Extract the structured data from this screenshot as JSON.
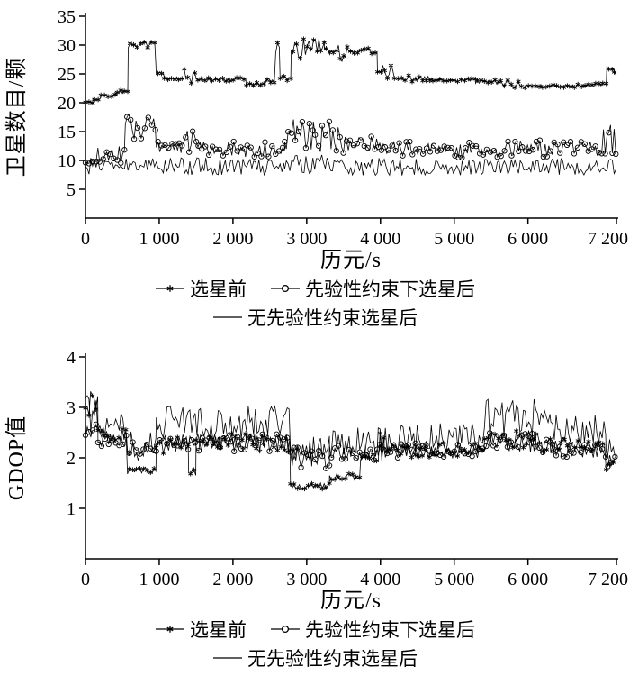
{
  "figure": {
    "background": "#ffffff",
    "series_color": "#000000"
  },
  "chart_data": [
    {
      "type": "line",
      "title": "",
      "xlabel": "历元/s",
      "ylabel": "卫星数目/颗",
      "xlim": [
        0,
        7200
      ],
      "ylim": [
        0,
        35
      ],
      "xticks": [
        0,
        1000,
        2000,
        3000,
        4000,
        5000,
        6000,
        7200
      ],
      "xtick_labels": [
        "0",
        "1 000",
        "2 000",
        "3 000",
        "4 000",
        "5 000",
        "6 000",
        "7 200"
      ],
      "yticks": [
        5,
        10,
        15,
        20,
        25,
        30,
        35
      ],
      "grid": false,
      "legend_position": "below",
      "sample_step": 24,
      "seed": 11,
      "legend": [
        {
          "label": "选星前",
          "marker": "star"
        },
        {
          "label": "先验性约束下选星后",
          "marker": "circle"
        },
        {
          "label": "无先验性约束选星后",
          "marker": "line"
        }
      ],
      "series": [
        {
          "name": "选星前",
          "marker": "star",
          "segments": [
            [
              0,
              100,
              20,
              0.15
            ],
            [
              100,
              210,
              20.7,
              0.2
            ],
            [
              210,
              430,
              21.3,
              0.25
            ],
            [
              430,
              580,
              21.9,
              0.3
            ],
            [
              580,
              960,
              30,
              0.7
            ],
            [
              960,
              1070,
              25.1,
              0.3
            ],
            [
              1070,
              1340,
              24.3,
              0.3
            ],
            [
              1340,
              1500,
              24.6,
              1.3
            ],
            [
              1500,
              2180,
              24,
              0.4
            ],
            [
              2180,
              2440,
              23.2,
              0.3
            ],
            [
              2440,
              2580,
              23.9,
              0.5
            ],
            [
              2580,
              2640,
              28,
              3
            ],
            [
              2640,
              2790,
              24.2,
              0.6
            ],
            [
              2790,
              3070,
              29.3,
              1.8
            ],
            [
              3070,
              3240,
              30,
              1.2
            ],
            [
              3240,
              3430,
              29.1,
              0.6
            ],
            [
              3430,
              3570,
              28.6,
              1.6
            ],
            [
              3570,
              3960,
              29,
              0.5
            ],
            [
              3960,
              4070,
              26.2,
              0.9
            ],
            [
              4070,
              4190,
              25.2,
              1.5
            ],
            [
              4190,
              4430,
              24.5,
              0.7
            ],
            [
              4430,
              4710,
              24.1,
              0.6
            ],
            [
              4710,
              5290,
              24,
              0.35
            ],
            [
              5290,
              5630,
              23.6,
              0.4
            ],
            [
              5630,
              5910,
              23.3,
              0.8
            ],
            [
              5910,
              6870,
              22.9,
              0.3
            ],
            [
              6870,
              7070,
              23.1,
              0.3
            ],
            [
              7070,
              7170,
              26,
              0.4
            ],
            [
              7170,
              7200,
              25.1,
              0.3
            ]
          ]
        },
        {
          "name": "先验性约束下选星后",
          "marker": "circle",
          "segments": [
            [
              0,
              540,
              11,
              1.6
            ],
            [
              540,
              960,
              16,
              2.4
            ],
            [
              960,
              1310,
              12.3,
              1.1
            ],
            [
              1310,
              1530,
              13.2,
              2.3
            ],
            [
              1530,
              2170,
              12,
              1.3
            ],
            [
              2170,
              2700,
              12,
              1.4
            ],
            [
              2700,
              3090,
              14.5,
              3
            ],
            [
              3090,
              3540,
              14,
              3
            ],
            [
              3540,
              3990,
              13,
              1.6
            ],
            [
              3990,
              4410,
              12,
              1.3
            ],
            [
              4410,
              5610,
              11.8,
              1.3
            ],
            [
              5610,
              6410,
              12,
              1.5
            ],
            [
              6410,
              7000,
              12,
              1.3
            ],
            [
              7000,
              7200,
              13.6,
              2.6
            ]
          ]
        },
        {
          "name": "无先验性约束选星后",
          "marker": "line",
          "segments": [
            [
              0,
              600,
              9,
              1.4
            ],
            [
              600,
              960,
              9.4,
              1.3
            ],
            [
              960,
              2700,
              9,
              1.5
            ],
            [
              2700,
              3500,
              9.4,
              1.7
            ],
            [
              3500,
              5200,
              8.9,
              1.5
            ],
            [
              5200,
              7200,
              8.9,
              1.4
            ]
          ]
        }
      ]
    },
    {
      "type": "line",
      "title": "",
      "xlabel": "历元/s",
      "ylabel": "GDOP值",
      "xlim": [
        0,
        7200
      ],
      "ylim": [
        0,
        4
      ],
      "xticks": [
        0,
        1000,
        2000,
        3000,
        4000,
        5000,
        6000,
        7200
      ],
      "xtick_labels": [
        "0",
        "1 000",
        "2 000",
        "3 000",
        "4 000",
        "5 000",
        "6 000",
        "7 200"
      ],
      "yticks": [
        1,
        2,
        3,
        4
      ],
      "grid": false,
      "legend_position": "below",
      "sample_step": 24,
      "seed": 77,
      "legend": [
        {
          "label": "选星前",
          "marker": "star"
        },
        {
          "label": "先验性约束下选星后",
          "marker": "circle"
        },
        {
          "label": "无先验性约束选星后",
          "marker": "line"
        }
      ],
      "series": [
        {
          "name": "选星前",
          "marker": "star",
          "segments": [
            [
              0,
              70,
              2.95,
              0.3
            ],
            [
              70,
              170,
              3.0,
              0.35
            ],
            [
              170,
              260,
              2.5,
              0.15
            ],
            [
              260,
              570,
              2.45,
              0.12
            ],
            [
              570,
              960,
              1.75,
              0.07
            ],
            [
              960,
              1080,
              2.2,
              0.15
            ],
            [
              1080,
              1400,
              2.3,
              0.18
            ],
            [
              1400,
              1500,
              1.7,
              0.1
            ],
            [
              1500,
              2780,
              2.3,
              0.18
            ],
            [
              2780,
              3310,
              1.45,
              0.07
            ],
            [
              3310,
              3730,
              1.62,
              0.07
            ],
            [
              3730,
              3970,
              2.0,
              0.1
            ],
            [
              3970,
              4110,
              2.2,
              0.35
            ],
            [
              4110,
              5410,
              2.15,
              0.15
            ],
            [
              5410,
              6110,
              2.35,
              0.2
            ],
            [
              6110,
              6510,
              2.3,
              0.18
            ],
            [
              6510,
              7060,
              2.2,
              0.15
            ],
            [
              7060,
              7200,
              1.85,
              0.1
            ]
          ]
        },
        {
          "name": "先验性约束下选星后",
          "marker": "circle",
          "segments": [
            [
              0,
              170,
              2.55,
              0.15
            ],
            [
              170,
              570,
              2.35,
              0.12
            ],
            [
              570,
              960,
              2.2,
              0.15
            ],
            [
              960,
              2780,
              2.3,
              0.18
            ],
            [
              2780,
              3310,
              2.0,
              0.25
            ],
            [
              3310,
              3970,
              2.1,
              0.15
            ],
            [
              3970,
              5410,
              2.15,
              0.15
            ],
            [
              5410,
              6310,
              2.3,
              0.2
            ],
            [
              6310,
              7060,
              2.15,
              0.15
            ],
            [
              7060,
              7200,
              1.95,
              0.12
            ]
          ]
        },
        {
          "name": "无先验性约束选星后",
          "marker": "line",
          "segments": [
            [
              0,
              170,
              2.9,
              0.4
            ],
            [
              170,
              570,
              2.6,
              0.3
            ],
            [
              570,
              960,
              2.25,
              0.3
            ],
            [
              960,
              2780,
              2.7,
              0.35
            ],
            [
              2780,
              3310,
              2.1,
              0.35
            ],
            [
              3310,
              3970,
              2.3,
              0.3
            ],
            [
              3970,
              5410,
              2.4,
              0.3
            ],
            [
              5410,
              6310,
              2.8,
              0.4
            ],
            [
              6310,
              7060,
              2.55,
              0.3
            ],
            [
              7060,
              7200,
              2.2,
              0.2
            ]
          ]
        }
      ]
    }
  ]
}
